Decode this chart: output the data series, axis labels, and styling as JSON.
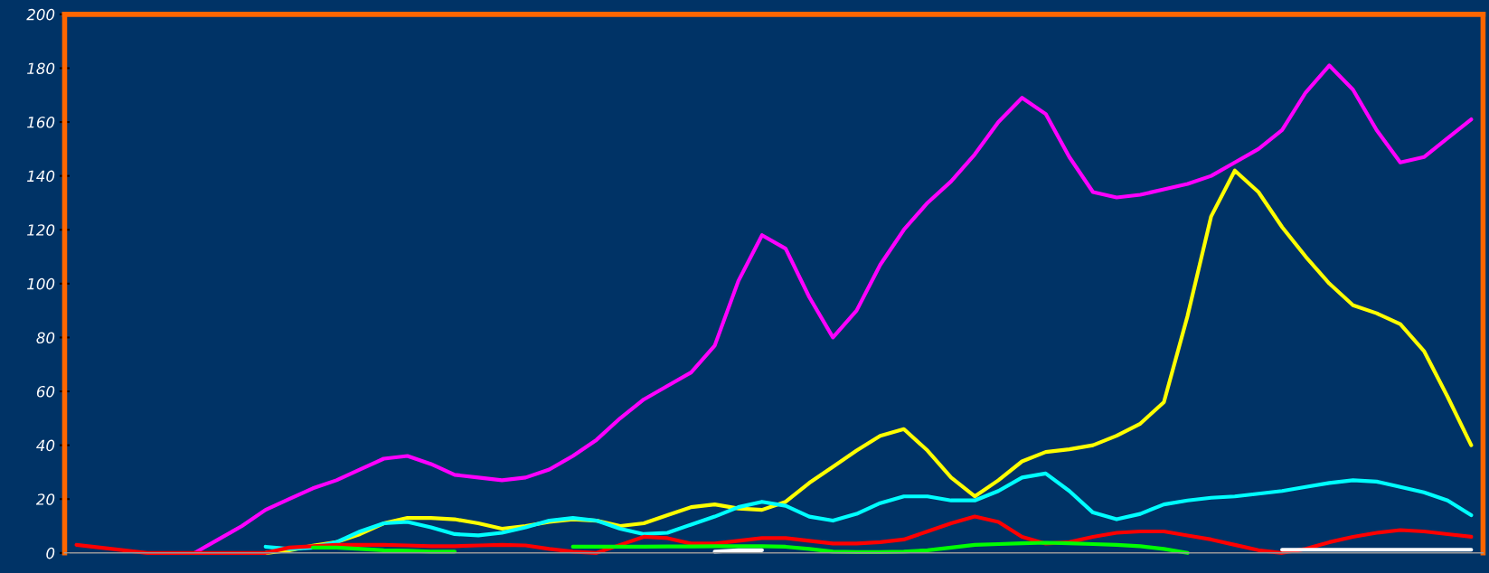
{
  "chart_data": {
    "type": "line",
    "categories": [
      null,
      null,
      null,
      null,
      null,
      null,
      null,
      null,
      null,
      null,
      null,
      null,
      null,
      null,
      null,
      null,
      null,
      null,
      null,
      null,
      null,
      null,
      null,
      null,
      null,
      null,
      null,
      null,
      null,
      null,
      null,
      null,
      null,
      null,
      null,
      null,
      null,
      null,
      null,
      null,
      null,
      null,
      null,
      null,
      null,
      null,
      null,
      null,
      null,
      null,
      null,
      null,
      null,
      null,
      null,
      null,
      null,
      null,
      null,
      null
    ],
    "series": [
      {
        "color": "#ff00ff",
        "values": [
          null,
          null,
          null,
          null,
          null,
          0,
          5,
          10,
          16,
          20,
          24,
          27,
          31,
          35,
          36,
          33,
          29,
          28,
          27,
          28,
          31,
          36,
          42,
          50,
          57,
          62,
          67,
          77,
          101,
          118,
          113,
          95,
          80,
          90,
          107,
          120,
          130,
          138,
          148,
          160,
          169,
          163,
          147,
          134,
          132,
          133,
          135,
          137,
          140,
          145,
          150,
          157,
          171,
          181,
          172,
          157,
          145,
          147,
          154,
          161
        ]
      },
      {
        "color": "#ffff00",
        "values": [
          null,
          null,
          null,
          null,
          null,
          null,
          null,
          null,
          0,
          1,
          2.7,
          4,
          7,
          11,
          13,
          13,
          12.5,
          11,
          9,
          10,
          11.5,
          12.5,
          12,
          10,
          11,
          14,
          17,
          18,
          16.5,
          16,
          19,
          26,
          32,
          38,
          43.5,
          46,
          38,
          28,
          21,
          27,
          34,
          37.5,
          38.5,
          40,
          43.5,
          48,
          56,
          88,
          125,
          142,
          134,
          121,
          110,
          100,
          92,
          89,
          85,
          75,
          58,
          40
        ]
      },
      {
        "color": "#00ffff",
        "values": [
          null,
          null,
          null,
          null,
          null,
          null,
          null,
          null,
          2.3,
          1.5,
          2,
          4,
          8,
          11,
          11.5,
          9.5,
          7,
          6.5,
          7.5,
          9.5,
          12,
          13,
          12,
          9,
          7,
          7.5,
          10.5,
          13.5,
          17,
          19,
          17.5,
          13.5,
          12,
          14.5,
          18.5,
          21,
          21,
          19.5,
          19.5,
          23,
          28,
          29.5,
          23,
          15,
          12.5,
          14.5,
          18,
          19.5,
          20.5,
          21,
          22,
          23,
          24.5,
          26,
          27,
          26.5,
          24.5,
          22.5,
          19.5,
          14
        ]
      },
      {
        "color": "#ff0000",
        "values": [
          3,
          2,
          1,
          0,
          0,
          0,
          0,
          0,
          0,
          2,
          2.5,
          3,
          3,
          3,
          2.8,
          2.5,
          2.5,
          2.8,
          3,
          2.8,
          1.5,
          0.5,
          0,
          3,
          6,
          5.5,
          3.5,
          3.5,
          4.5,
          5.5,
          5.5,
          4.5,
          3.5,
          3.5,
          4,
          5,
          8,
          11,
          13.5,
          11.5,
          6,
          3.5,
          4,
          6,
          7.5,
          8,
          8,
          6.5,
          5,
          3,
          1,
          0,
          1.5,
          4,
          6,
          7.5,
          8.5,
          8,
          7,
          6
        ]
      },
      {
        "color": "#00ff00",
        "values": [
          null,
          null,
          null,
          null,
          null,
          null,
          null,
          null,
          null,
          null,
          2,
          2,
          1.5,
          1,
          0.8,
          0.5,
          0.5,
          null,
          null,
          null,
          null,
          2.3,
          2.3,
          2.3,
          2.3,
          2.4,
          2.4,
          2.5,
          2.5,
          2.5,
          2.3,
          1.5,
          0.5,
          0.3,
          0.3,
          0.5,
          1,
          2,
          3,
          3.3,
          3.6,
          3.8,
          3.6,
          3.3,
          3,
          2.5,
          1.5,
          0,
          null,
          null,
          null,
          null,
          null,
          null,
          null,
          null,
          null,
          null,
          null,
          null
        ]
      },
      {
        "color": "#ffffff",
        "values": [
          null,
          null,
          null,
          null,
          null,
          null,
          null,
          null,
          null,
          null,
          null,
          null,
          null,
          null,
          null,
          null,
          null,
          null,
          null,
          null,
          null,
          null,
          null,
          null,
          null,
          null,
          null,
          0.5,
          1,
          1,
          null,
          null,
          null,
          null,
          null,
          null,
          null,
          null,
          null,
          null,
          null,
          null,
          null,
          null,
          null,
          null,
          null,
          null,
          null,
          null,
          null,
          1.2,
          1.2,
          1.2,
          1.2,
          1.2,
          1.2,
          1.2,
          1.2,
          1.2
        ]
      }
    ],
    "ylim": [
      0,
      200
    ],
    "yticks": [
      0,
      20,
      40,
      60,
      80,
      100,
      120,
      140,
      160,
      180,
      200
    ],
    "tick_labels": "y",
    "grid": false,
    "legend": false
  }
}
